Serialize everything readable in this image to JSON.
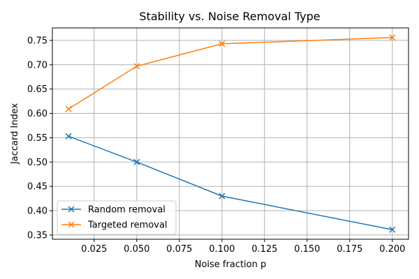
{
  "chart_data": {
    "type": "line",
    "title": "Stability vs. Noise Removal Type",
    "xlabel": "Noise fraction p",
    "ylabel": "Jaccard Index",
    "x": [
      0.01,
      0.05,
      0.1,
      0.2
    ],
    "series": [
      {
        "name": "Random removal",
        "color": "#1f77b4",
        "marker": "x",
        "values": [
          0.553,
          0.5,
          0.43,
          0.361
        ]
      },
      {
        "name": "Targeted removal",
        "color": "#ff7f0e",
        "marker": "x",
        "values": [
          0.609,
          0.697,
          0.743,
          0.756
        ]
      }
    ],
    "xlim": [
      0.0005,
      0.2095
    ],
    "ylim": [
      0.3413,
      0.7757
    ],
    "xticks": [
      "0.025",
      "0.050",
      "0.075",
      "0.100",
      "0.125",
      "0.150",
      "0.175",
      "0.200"
    ],
    "yticks": [
      "0.35",
      "0.40",
      "0.45",
      "0.50",
      "0.55",
      "0.60",
      "0.65",
      "0.70",
      "0.75"
    ],
    "grid": true,
    "legend_position": "lower-left"
  }
}
